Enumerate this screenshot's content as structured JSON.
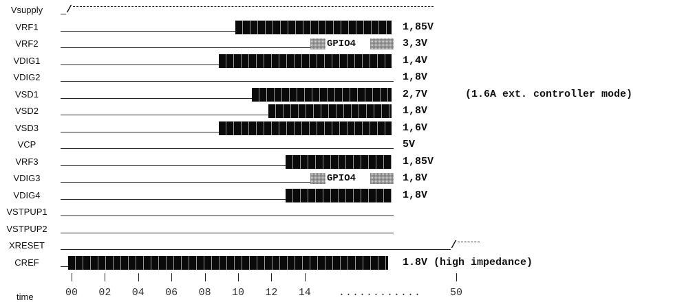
{
  "signals": [
    {
      "name": "Vsupply",
      "voltage": "",
      "kind": "supply",
      "on_at": 1
    },
    {
      "name": "VRF1",
      "voltage": "1,85V",
      "kind": "bar",
      "on_at": 10
    },
    {
      "name": "VRF2",
      "voltage": "3,3V",
      "kind": "gpio",
      "gpio": "GPIO4"
    },
    {
      "name": "VDIG1",
      "voltage": "1,4V",
      "kind": "bar",
      "on_at": 9
    },
    {
      "name": "VDIG2",
      "voltage": "1,8V",
      "kind": "none"
    },
    {
      "name": "VSD1",
      "voltage": "2,7V",
      "kind": "bar",
      "on_at": 11,
      "note": "(1.6A ext. controller mode)"
    },
    {
      "name": "VSD2",
      "voltage": "1,8V",
      "kind": "bar",
      "on_at": 12
    },
    {
      "name": "VSD3",
      "voltage": "1,6V",
      "kind": "bar",
      "on_at": 9
    },
    {
      "name": "VCP",
      "voltage": "5V",
      "kind": "none"
    },
    {
      "name": "VRF3",
      "voltage": "1,85V",
      "kind": "bar",
      "on_at": 13
    },
    {
      "name": "VDIG3",
      "voltage": "1,8V",
      "kind": "gpio",
      "gpio": "GPIO4"
    },
    {
      "name": "VDIG4",
      "voltage": "1,8V",
      "kind": "bar",
      "on_at": 13
    },
    {
      "name": "VSTPUP1",
      "voltage": "",
      "kind": "none"
    },
    {
      "name": "VSTPUP2",
      "voltage": "",
      "kind": "none"
    },
    {
      "name": "XRESET",
      "voltage": "",
      "kind": "reset",
      "on_at": 50
    },
    {
      "name": "CREF",
      "voltage": "1.8V (high impedance)",
      "kind": "cref",
      "on_at": 0
    }
  ],
  "time_axis": {
    "label": "time",
    "ticks": [
      "00",
      "02",
      "04",
      "06",
      "08",
      "10",
      "12",
      "14"
    ],
    "ellipsis": "............",
    "end_tick": "50"
  }
}
